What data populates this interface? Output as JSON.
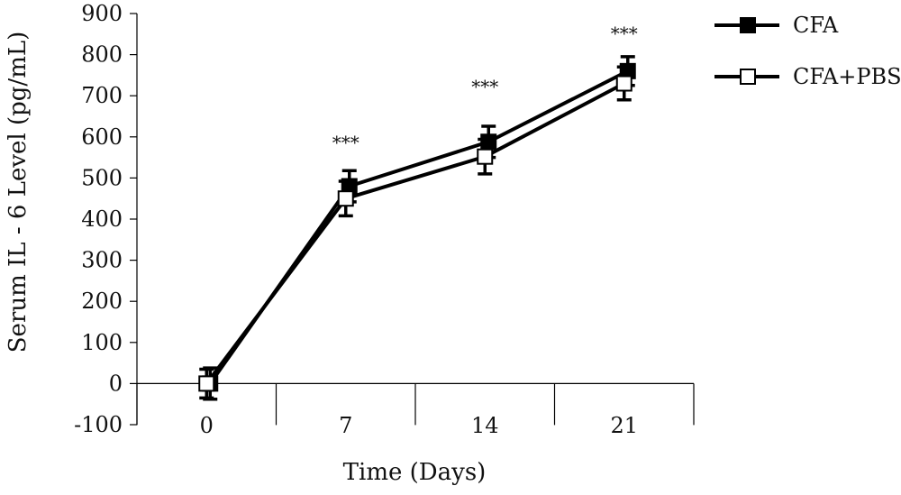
{
  "chart_data": {
    "type": "line",
    "title": "",
    "xlabel": "Time (Days)",
    "ylabel": "Serum IL - 6 Level (pg/mL)",
    "categories": [
      "0",
      "7",
      "14",
      "21"
    ],
    "x": [
      0,
      7,
      14,
      21
    ],
    "ylim": [
      -100,
      900
    ],
    "yticks": [
      -100,
      0,
      100,
      200,
      300,
      400,
      500,
      600,
      700,
      800,
      900
    ],
    "grid": false,
    "legend_position": "top-right",
    "series": [
      {
        "name": "CFA",
        "marker": "filled-square",
        "values": [
          0,
          480,
          588,
          760
        ],
        "errors": [
          38,
          38,
          38,
          35
        ]
      },
      {
        "name": "CFA+PBS",
        "marker": "open-square",
        "values": [
          0,
          450,
          552,
          730
        ],
        "errors": [
          35,
          42,
          42,
          40
        ]
      }
    ],
    "annotations": [
      "",
      "***",
      "***",
      "***"
    ],
    "colors": {
      "line": "#000000",
      "filled_marker": "#000000",
      "open_marker": "#ffffff"
    }
  }
}
